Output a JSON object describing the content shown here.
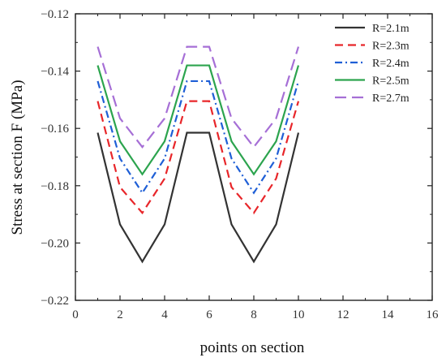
{
  "chart_data": {
    "type": "line",
    "title": "",
    "xlabel": "points on section",
    "ylabel": "Stress at section F (MPa)",
    "xlim": [
      0,
      16
    ],
    "ylim": [
      -0.22,
      -0.12
    ],
    "x_ticks": [
      0,
      2,
      4,
      6,
      8,
      10,
      12,
      14,
      16
    ],
    "y_ticks": [
      -0.22,
      -0.2,
      -0.18,
      -0.16,
      -0.14,
      -0.12
    ],
    "x_tick_labels": [
      "0",
      "2",
      "4",
      "6",
      "8",
      "10",
      "12",
      "14",
      "16"
    ],
    "y_tick_labels": [
      "−0.22",
      "−0.20",
      "−0.18",
      "−0.16",
      "−0.14",
      "−0.12"
    ],
    "grid": false,
    "legend_position": "top-right",
    "x": [
      1,
      2,
      3,
      4,
      5,
      6,
      7,
      8,
      9,
      10
    ],
    "series": [
      {
        "name": "R=2.1m",
        "color": "#333333",
        "dash": "solid",
        "values": [
          -0.1615,
          -0.1935,
          -0.2065,
          -0.1935,
          -0.1615,
          -0.1615,
          -0.1935,
          -0.2065,
          -0.1935,
          -0.1615
        ]
      },
      {
        "name": "R=2.3m",
        "color": "#e8262a",
        "dash": "dashed",
        "values": [
          -0.1505,
          -0.1805,
          -0.1895,
          -0.1775,
          -0.1505,
          -0.1505,
          -0.1805,
          -0.1895,
          -0.1775,
          -0.1505
        ]
      },
      {
        "name": "R=2.4m",
        "color": "#1f5fd6",
        "dash": "dash-dot",
        "values": [
          -0.1435,
          -0.1705,
          -0.1825,
          -0.1705,
          -0.1435,
          -0.1435,
          -0.1705,
          -0.1825,
          -0.1705,
          -0.1435
        ]
      },
      {
        "name": "R=2.5m",
        "color": "#2ca44e",
        "dash": "solid",
        "values": [
          -0.138,
          -0.1645,
          -0.176,
          -0.1645,
          -0.138,
          -0.138,
          -0.1645,
          -0.176,
          -0.1645,
          -0.138
        ]
      },
      {
        "name": "R=2.7m",
        "color": "#a66fd6",
        "dash": "long-dashed",
        "values": [
          -0.1315,
          -0.1565,
          -0.1665,
          -0.1565,
          -0.1315,
          -0.1315,
          -0.1565,
          -0.1665,
          -0.1565,
          -0.1315
        ]
      }
    ]
  }
}
